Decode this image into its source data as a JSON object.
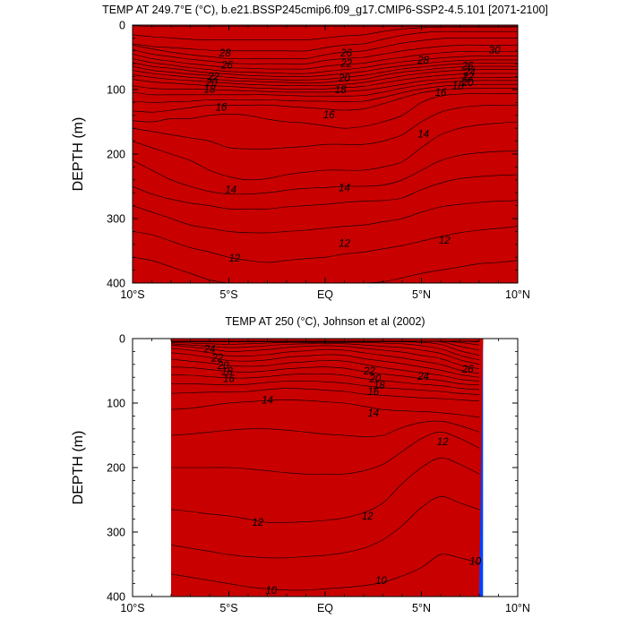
{
  "figure": {
    "panel_top_title": "TEMP AT 249.7°E (°C), b.e21.BSSP245cmip6.f09_g17.CMIP6-SSP2-4.5.101 [2071-2100]",
    "panel_bottom_title": "TEMP AT 250 (°C), Johnson et al (2002)"
  },
  "chart_data": [
    {
      "type": "heatmap",
      "title": "TEMP AT 249.7°E (°C), b.e21.BSSP245cmip6.f09_g17.CMIP6-SSP2-4.5.101 [2071-2100]",
      "xlabel": "",
      "ylabel": "DEPTH (m)",
      "x_ticks": [
        "10°S",
        "5°S",
        "EQ",
        "5°N",
        "10°N"
      ],
      "y_ticks": [
        "0",
        "100",
        "200",
        "300",
        "400"
      ],
      "xlim": [
        -10,
        10
      ],
      "ylim": [
        0,
        400
      ],
      "y_reversed": true,
      "x": [
        -10,
        -9,
        -8,
        -7,
        -6,
        -5,
        -4,
        -3,
        -2,
        -1,
        0,
        1,
        2,
        3,
        4,
        5,
        6,
        7,
        8,
        9,
        10
      ],
      "data_extent": [
        -10,
        10
      ],
      "contour_labels": [
        {
          "v": 28,
          "lat": -5.2,
          "depth": 43
        },
        {
          "v": 26,
          "lat": -5.1,
          "depth": 62
        },
        {
          "v": 22,
          "lat": -5.8,
          "depth": 80
        },
        {
          "v": 20,
          "lat": -5.9,
          "depth": 89
        },
        {
          "v": 18,
          "lat": -6.0,
          "depth": 99
        },
        {
          "v": 16,
          "lat": -5.4,
          "depth": 127
        },
        {
          "v": 26,
          "lat": 1.1,
          "depth": 43
        },
        {
          "v": 22,
          "lat": 1.1,
          "depth": 59
        },
        {
          "v": 20,
          "lat": 1.0,
          "depth": 82
        },
        {
          "v": 18,
          "lat": 0.8,
          "depth": 100
        },
        {
          "v": 16,
          "lat": 0.2,
          "depth": 139
        },
        {
          "v": 28,
          "lat": 5.1,
          "depth": 54
        },
        {
          "v": 30,
          "lat": 8.8,
          "depth": 39
        },
        {
          "v": 26,
          "lat": 7.4,
          "depth": 63
        },
        {
          "v": 24,
          "lat": 7.5,
          "depth": 73
        },
        {
          "v": 22,
          "lat": 7.4,
          "depth": 80
        },
        {
          "v": 20,
          "lat": 7.4,
          "depth": 89
        },
        {
          "v": 18,
          "lat": 6.9,
          "depth": 94
        },
        {
          "v": 16,
          "lat": 6.0,
          "depth": 104
        },
        {
          "v": 14,
          "lat": 5.1,
          "depth": 169
        },
        {
          "v": 14,
          "lat": -4.9,
          "depth": 255
        },
        {
          "v": 14,
          "lat": 1.0,
          "depth": 252
        },
        {
          "v": 12,
          "lat": -4.7,
          "depth": 361
        },
        {
          "v": 12,
          "lat": 1.0,
          "depth": 338
        },
        {
          "v": 12,
          "lat": 6.2,
          "depth": 333
        }
      ]
    },
    {
      "type": "heatmap",
      "title": "TEMP AT 250 (°C), Johnson et al (2002)",
      "xlabel": "",
      "ylabel": "DEPTH (m)",
      "x_ticks": [
        "10°S",
        "5°S",
        "EQ",
        "5°N",
        "10°N"
      ],
      "y_ticks": [
        "0",
        "100",
        "200",
        "300",
        "400"
      ],
      "xlim": [
        -10,
        10
      ],
      "ylim": [
        0,
        400
      ],
      "y_reversed": true,
      "x": [
        -8,
        -7,
        -6,
        -5,
        -4,
        -3,
        -2,
        -1,
        0,
        1,
        2,
        3,
        4,
        5,
        6,
        7,
        8
      ],
      "data_extent": [
        -8,
        8.2
      ],
      "contour_labels": [
        {
          "v": 24,
          "lat": -6.0,
          "depth": 16
        },
        {
          "v": 22,
          "lat": -5.6,
          "depth": 30
        },
        {
          "v": 20,
          "lat": -5.3,
          "depth": 42
        },
        {
          "v": 18,
          "lat": -5.1,
          "depth": 51
        },
        {
          "v": 16,
          "lat": -5.0,
          "depth": 62
        },
        {
          "v": 14,
          "lat": -3.0,
          "depth": 95
        },
        {
          "v": 22,
          "lat": 2.3,
          "depth": 50
        },
        {
          "v": 20,
          "lat": 2.6,
          "depth": 62
        },
        {
          "v": 18,
          "lat": 2.8,
          "depth": 72
        },
        {
          "v": 16,
          "lat": 2.5,
          "depth": 82
        },
        {
          "v": 14,
          "lat": 2.5,
          "depth": 115
        },
        {
          "v": 24,
          "lat": 5.1,
          "depth": 58
        },
        {
          "v": 26,
          "lat": 7.4,
          "depth": 47
        },
        {
          "v": 12,
          "lat": 6.1,
          "depth": 160
        },
        {
          "v": 12,
          "lat": -3.5,
          "depth": 285
        },
        {
          "v": 12,
          "lat": 2.2,
          "depth": 275
        },
        {
          "v": 10,
          "lat": -2.8,
          "depth": 390
        },
        {
          "v": 10,
          "lat": 2.9,
          "depth": 375
        },
        {
          "v": 10,
          "lat": 7.8,
          "depth": 345
        }
      ]
    }
  ]
}
